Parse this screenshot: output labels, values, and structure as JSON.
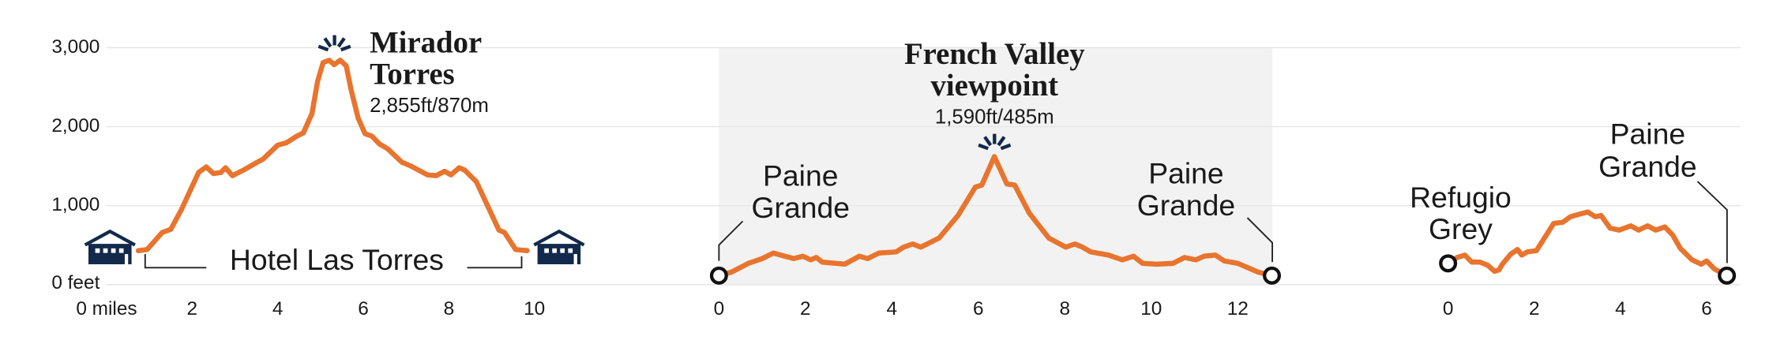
{
  "chart_data": [
    {
      "type": "line",
      "color": "#e8742e",
      "x": [
        0.74,
        0.95,
        1.3,
        1.5,
        1.75,
        2.15,
        2.33,
        2.5,
        2.67,
        2.78,
        2.94,
        3.2,
        3.47,
        3.66,
        4.0,
        4.2,
        4.45,
        4.6,
        4.8,
        4.93,
        5.06,
        5.2,
        5.32,
        5.46,
        5.6,
        5.72,
        5.88,
        6.04,
        6.2,
        6.38,
        6.57,
        6.9,
        7.1,
        7.5,
        7.7,
        7.9,
        8.05,
        8.24,
        8.37,
        8.64,
        9.17,
        9.3,
        9.56,
        9.83
      ],
      "values": [
        430,
        445,
        660,
        700,
        950,
        1420,
        1490,
        1405,
        1420,
        1480,
        1380,
        1450,
        1535,
        1590,
        1765,
        1795,
        1880,
        1920,
        2165,
        2570,
        2810,
        2840,
        2785,
        2840,
        2770,
        2455,
        2110,
        1910,
        1880,
        1780,
        1720,
        1550,
        1505,
        1390,
        1380,
        1435,
        1390,
        1480,
        1450,
        1305,
        690,
        660,
        445,
        430
      ],
      "xlim": [
        0,
        11
      ],
      "xticks": [
        {
          "value": 0,
          "label": "0 miles"
        },
        2,
        4,
        6,
        8,
        10
      ],
      "ylim": [
        0,
        3000
      ],
      "yticks": [
        {
          "value": 0,
          "label": "0 feet"
        },
        {
          "value": 1000,
          "label": "1,000"
        },
        {
          "value": 2000,
          "label": "2,000"
        },
        {
          "value": 3000,
          "label": "3,000"
        }
      ],
      "grid": true,
      "annotations": [
        {
          "lines": [
            "Mirador",
            "Torres"
          ],
          "detail": "2,855ft/870m"
        },
        {
          "lines": [
            "Hotel Las Torres"
          ]
        }
      ]
    },
    {
      "type": "line",
      "color": "#e8742e",
      "x": [
        0,
        0.29,
        0.68,
        1.0,
        1.26,
        1.52,
        1.73,
        1.94,
        2.12,
        2.25,
        2.39,
        2.91,
        3.25,
        3.44,
        3.7,
        4.1,
        4.27,
        4.48,
        4.67,
        5.09,
        5.53,
        5.93,
        6.08,
        6.37,
        6.66,
        6.84,
        7.18,
        7.63,
        8.02,
        8.23,
        8.41,
        8.6,
        9.01,
        9.33,
        9.59,
        9.8,
        10.12,
        10.5,
        10.77,
        11.03,
        11.22,
        11.48,
        11.69,
        12,
        12.47,
        12.79
      ],
      "values": [
        115,
        160,
        270,
        330,
        400,
        360,
        330,
        360,
        315,
        345,
        285,
        260,
        360,
        330,
        400,
        415,
        475,
        515,
        475,
        590,
        875,
        1235,
        1260,
        1620,
        1275,
        1260,
        905,
        590,
        475,
        515,
        475,
        415,
        375,
        315,
        360,
        270,
        260,
        270,
        345,
        315,
        360,
        375,
        300,
        270,
        160,
        115
      ],
      "xlim": [
        0,
        12.8
      ],
      "xticks": [
        0,
        2,
        4,
        6,
        8,
        10,
        12
      ],
      "annotations": [
        {
          "lines": [
            "French Valley",
            "viewpoint"
          ],
          "detail": "1,590ft/485m"
        },
        {
          "lines": [
            "Paine",
            "Grande"
          ]
        },
        {
          "lines": [
            "Paine",
            "Grande"
          ]
        }
      ]
    },
    {
      "type": "line",
      "color": "#e8742e",
      "x": [
        0,
        0.21,
        0.39,
        0.55,
        0.74,
        0.92,
        1.08,
        1.18,
        1.26,
        1.45,
        1.61,
        1.71,
        1.84,
        2.05,
        2.45,
        2.66,
        2.84,
        3.03,
        3.24,
        3.42,
        3.55,
        3.76,
        3.97,
        4.24,
        4.42,
        4.63,
        4.82,
        5.03,
        5.21,
        5.39,
        5.66,
        5.87,
        6.0,
        6.18,
        6.47
      ],
      "values": [
        270,
        345,
        375,
        285,
        285,
        245,
        170,
        185,
        260,
        385,
        445,
        375,
        415,
        430,
        775,
        790,
        860,
        890,
        920,
        860,
        875,
        715,
        690,
        745,
        690,
        745,
        690,
        730,
        630,
        460,
        315,
        260,
        300,
        200,
        115
      ],
      "xlim": [
        0,
        6.5
      ],
      "xticks": [
        0,
        2,
        4,
        6
      ],
      "annotations": [
        {
          "lines": [
            "Refugio",
            "Grey"
          ]
        },
        {
          "lines": [
            "Paine",
            "Grande"
          ]
        }
      ]
    }
  ]
}
